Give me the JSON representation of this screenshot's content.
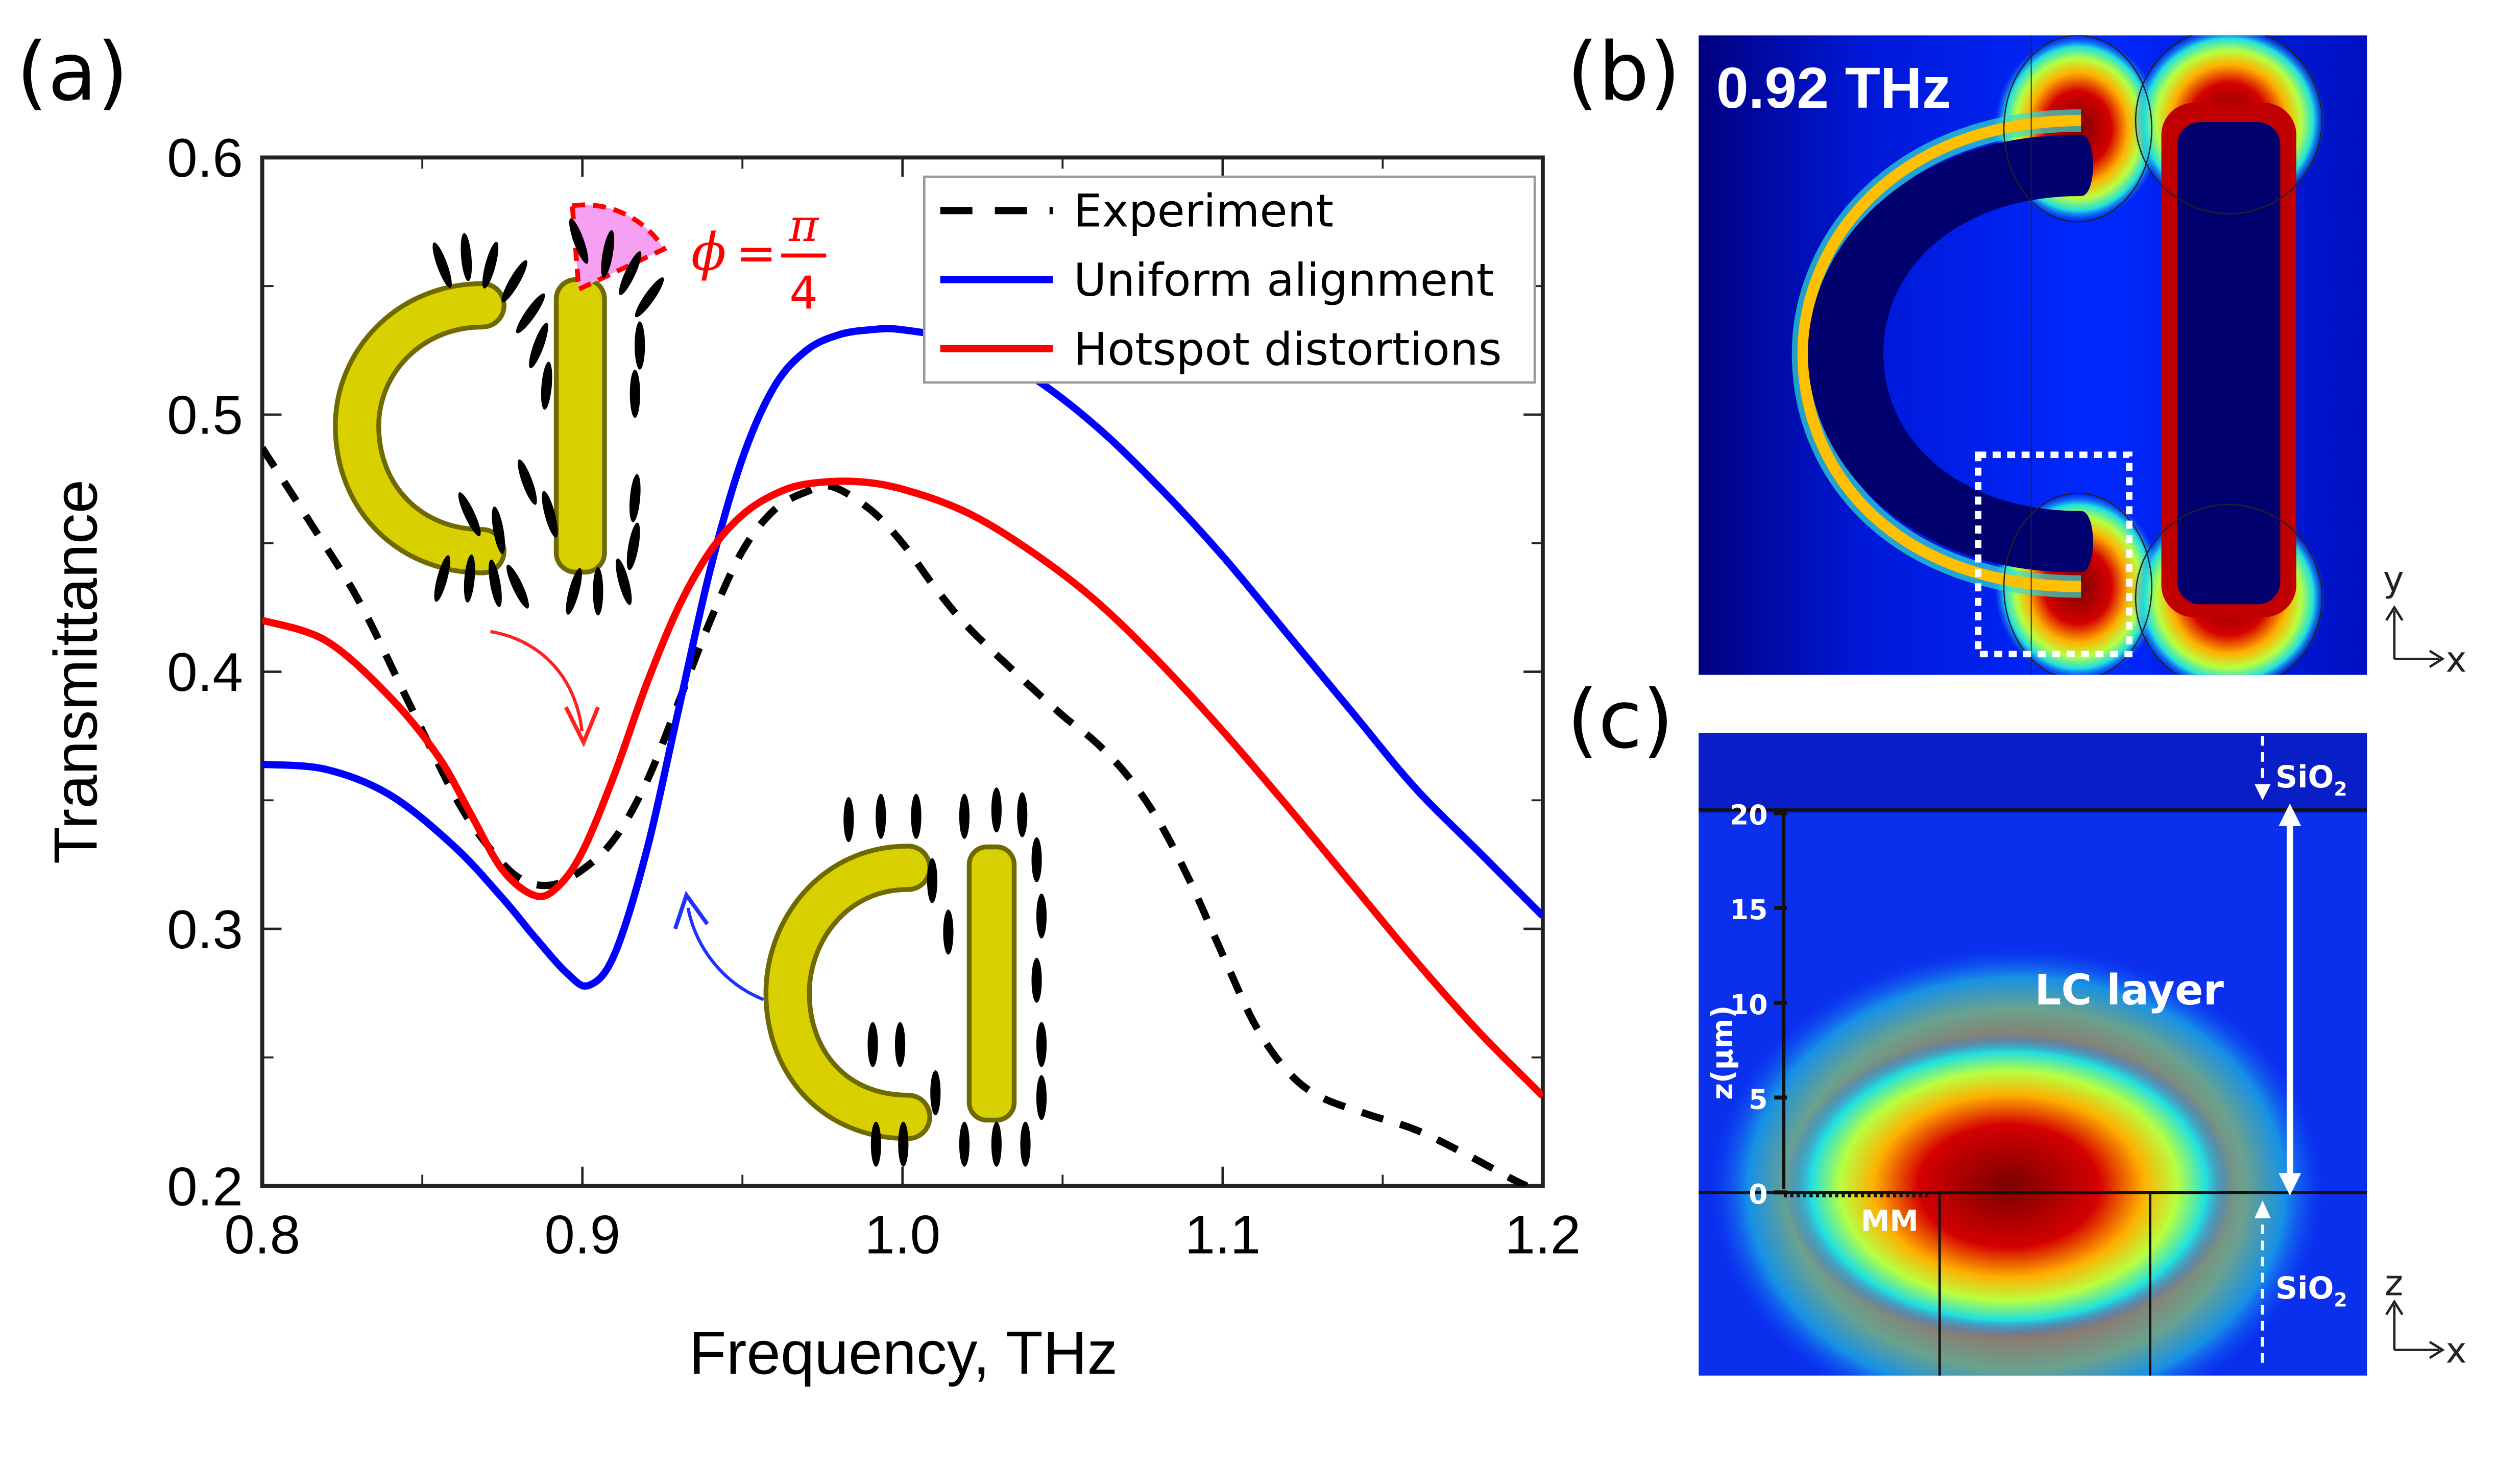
{
  "panels": {
    "a": {
      "label": "(a)"
    },
    "b": {
      "label": "(b)",
      "frequency_label": "0.92 THz",
      "axis_y": "y",
      "axis_x": "x"
    },
    "c": {
      "label": "(c)",
      "z_axis_label": "z(μm)",
      "z_ticks": [
        "0",
        "5",
        "10",
        "15",
        "20"
      ],
      "z_tick_values": [
        0,
        5,
        10,
        15,
        20
      ],
      "layer_label": "LC layer",
      "mm_label": "MM",
      "sio2_top": "SiO",
      "sio2_bottom": "SiO",
      "sio2_subscript": "2",
      "axis_z": "z",
      "axis_x": "x"
    }
  },
  "annotation": {
    "phi_symbol": "ϕ",
    "equals": "=",
    "numerator": "π",
    "denominator": "4"
  },
  "chart_data": {
    "type": "line",
    "title": "",
    "xlabel": "Frequency, THz",
    "ylabel": "Transmittance",
    "xlim": [
      0.8,
      1.2
    ],
    "ylim": [
      0.2,
      0.6
    ],
    "xticks": [
      0.8,
      0.9,
      1.0,
      1.1,
      1.2
    ],
    "xtick_labels": [
      "0.8",
      "0.9",
      "1.0",
      "1.1",
      "1.2"
    ],
    "yticks": [
      0.2,
      0.3,
      0.4,
      0.5,
      0.6
    ],
    "ytick_labels": [
      "0.2",
      "0.3",
      "0.4",
      "0.5",
      "0.6"
    ],
    "grid": false,
    "legend_position": "top-right",
    "series": [
      {
        "name": "Experiment",
        "style": "dashed",
        "color": "#000000",
        "x": [
          0.8,
          0.815,
          0.83,
          0.845,
          0.86,
          0.87,
          0.88,
          0.89,
          0.9,
          0.91,
          0.92,
          0.93,
          0.94,
          0.95,
          0.96,
          0.97,
          0.978,
          0.99,
          1.0,
          1.01,
          1.02,
          1.035,
          1.05,
          1.06,
          1.07,
          1.08,
          1.09,
          1.1,
          1.11,
          1.12,
          1.13,
          1.145,
          1.16,
          1.175,
          1.19,
          1.195
        ],
        "y": [
          0.487,
          0.458,
          0.428,
          0.39,
          0.352,
          0.333,
          0.32,
          0.317,
          0.323,
          0.335,
          0.357,
          0.388,
          0.42,
          0.447,
          0.463,
          0.47,
          0.472,
          0.463,
          0.45,
          0.433,
          0.418,
          0.4,
          0.383,
          0.373,
          0.36,
          0.342,
          0.318,
          0.29,
          0.263,
          0.245,
          0.235,
          0.228,
          0.222,
          0.213,
          0.203,
          0.2
        ]
      },
      {
        "name": "Uniform alignment",
        "style": "solid",
        "color": "#0000ff",
        "x": [
          0.8,
          0.82,
          0.84,
          0.86,
          0.875,
          0.885,
          0.895,
          0.902,
          0.91,
          0.92,
          0.93,
          0.94,
          0.95,
          0.96,
          0.97,
          0.98,
          0.99,
          1.0,
          1.02,
          1.04,
          1.06,
          1.08,
          1.1,
          1.12,
          1.14,
          1.16,
          1.18,
          1.2
        ],
        "y": [
          0.364,
          0.362,
          0.352,
          0.332,
          0.312,
          0.297,
          0.283,
          0.278,
          0.29,
          0.33,
          0.385,
          0.44,
          0.483,
          0.511,
          0.525,
          0.531,
          0.533,
          0.533,
          0.528,
          0.515,
          0.496,
          0.472,
          0.445,
          0.415,
          0.385,
          0.355,
          0.33,
          0.305
        ]
      },
      {
        "name": "Hotspot distortions",
        "style": "solid",
        "color": "#ff0000",
        "x": [
          0.8,
          0.82,
          0.84,
          0.855,
          0.865,
          0.875,
          0.885,
          0.892,
          0.9,
          0.91,
          0.92,
          0.93,
          0.94,
          0.95,
          0.96,
          0.97,
          0.985,
          1.0,
          1.02,
          1.04,
          1.06,
          1.08,
          1.1,
          1.12,
          1.14,
          1.16,
          1.18,
          1.2
        ],
        "y": [
          0.42,
          0.412,
          0.39,
          0.367,
          0.345,
          0.323,
          0.313,
          0.316,
          0.33,
          0.36,
          0.395,
          0.425,
          0.447,
          0.461,
          0.469,
          0.473,
          0.474,
          0.471,
          0.462,
          0.447,
          0.428,
          0.404,
          0.377,
          0.348,
          0.318,
          0.288,
          0.26,
          0.235
        ]
      }
    ]
  }
}
